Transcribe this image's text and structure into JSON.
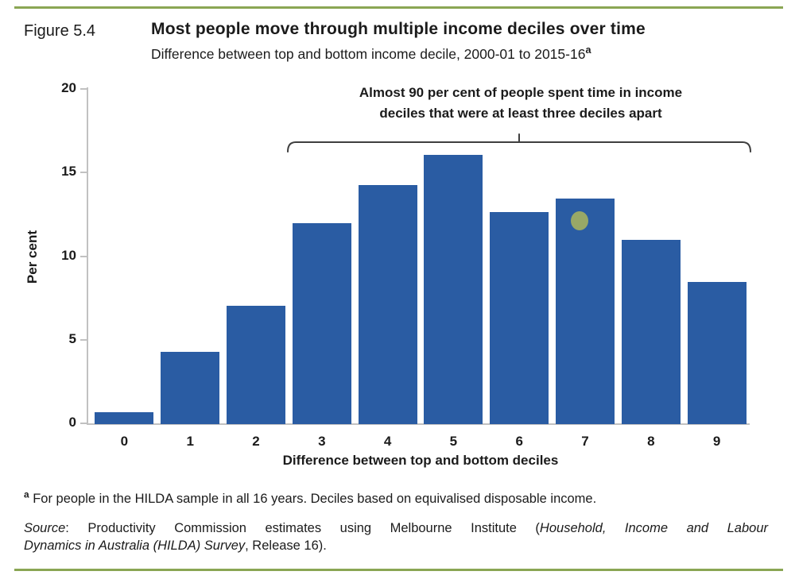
{
  "figure": {
    "label": "Figure 5.4",
    "title": "Most people move through multiple income deciles over time",
    "subtitle": "Difference between top and bottom income decile, 2000-01 to 2015-16",
    "subtitle_footnote_marker": "a"
  },
  "chart_data": {
    "type": "bar",
    "categories": [
      "0",
      "1",
      "2",
      "3",
      "4",
      "5",
      "6",
      "7",
      "8",
      "9"
    ],
    "values": [
      0.7,
      4.3,
      7.1,
      12.0,
      14.3,
      16.1,
      12.7,
      13.5,
      11.0,
      8.5
    ],
    "title": "",
    "xlabel": "Difference between top and bottom deciles",
    "ylabel": "Per cent",
    "ylim": [
      0,
      20
    ],
    "yticks": [
      0,
      5,
      10,
      15,
      20
    ],
    "grid": false,
    "legend": "none",
    "annotation": {
      "line1": "Almost 90 per cent of people spent time in income",
      "line2": "deciles that were at least three deciles apart",
      "bracket_from_category": "3",
      "bracket_to_category": "9",
      "marker_dot": {
        "category": "7",
        "approx_value": 12.2
      }
    }
  },
  "footnote": {
    "marker": "a",
    "text": " For people in the HILDA sample in all 16 years. Deciles based on equivalised disposable income."
  },
  "source": {
    "line1_seg1_italic": "Source",
    "line1_seg2": ": Productivity Commission estimates using Melbourne Institute (",
    "line1_seg3_italic": "Household, Income and Labour",
    "line2_seg1_italic": "Dynamics in Australia (HILDA) Survey",
    "line2_seg2": ", Release 16)."
  },
  "colors": {
    "bar": "#2a5ca3",
    "rule_green": "#8aa654",
    "axis_gray": "#c1c1c1",
    "marker_olive": "#a2af62",
    "bracket": "#3f3f3f",
    "text": "#1b1b1b"
  }
}
